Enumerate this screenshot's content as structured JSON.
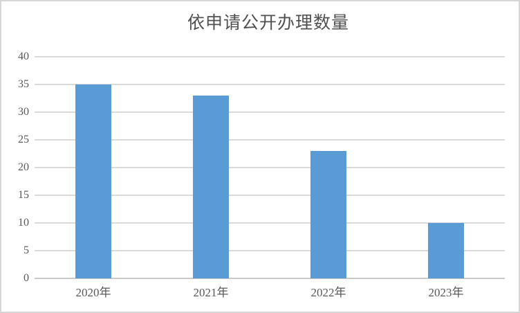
{
  "chart_data": {
    "type": "bar",
    "title": "依申请公开办理数量",
    "categories": [
      "2020年",
      "2021年",
      "2022年",
      "2023年"
    ],
    "values": [
      35,
      33,
      23,
      10
    ],
    "xlabel": "",
    "ylabel": "",
    "ylim": [
      0,
      40
    ],
    "yticks": [
      0,
      5,
      10,
      15,
      20,
      25,
      30,
      35,
      40
    ],
    "grid": "horizontal",
    "legend": "none",
    "colors": {
      "bar_fill": "#5B9BD5",
      "gridline": "#D9D9D9",
      "axis_line": "#C9C9C9",
      "label_text": "#595959",
      "title_text": "#515151",
      "frame_border": "#D6D6D6",
      "background": "#FFFFFF"
    }
  }
}
